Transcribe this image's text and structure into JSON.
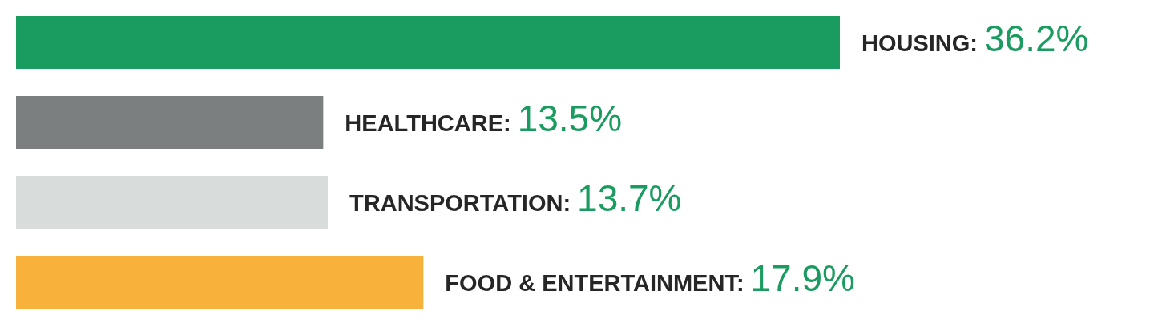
{
  "chart_data": {
    "type": "bar",
    "orientation": "horizontal",
    "categories": [
      "HOUSING:",
      "HEALTHCARE:",
      "TRANSPORTATION:",
      "FOOD & ENTERTAINMENT:"
    ],
    "values": [
      36.2,
      13.5,
      13.7,
      17.9
    ],
    "value_labels": [
      "36.2%",
      "13.5%",
      "13.7%",
      "17.9%"
    ],
    "colors": [
      "#1a9b5f",
      "#7c7f80",
      "#d8dcdb",
      "#f8b13a"
    ],
    "data_labels": true,
    "grid": false,
    "tick_labels": false
  }
}
